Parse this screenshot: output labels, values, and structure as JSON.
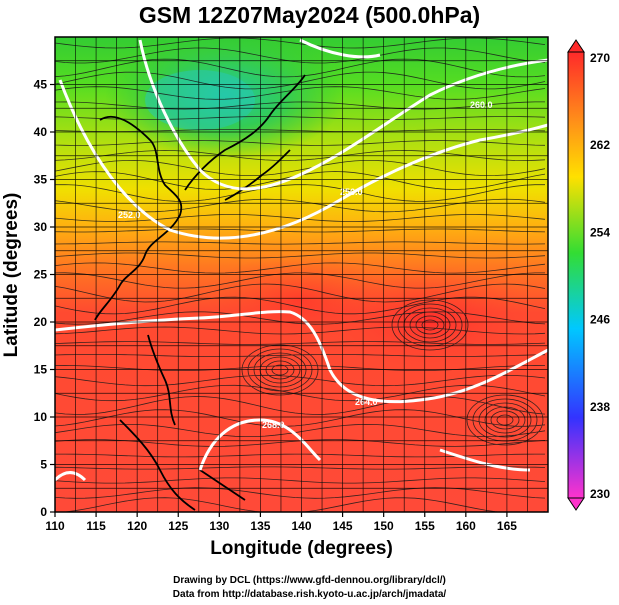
{
  "title": "GSM 12Z07May2024 (500.0hPa)",
  "xlabel": "Longitude (degrees)",
  "ylabel": "Latitude (degrees)",
  "credits": {
    "line1": "Drawing by DCL (https://www.gfd-dennou.org/library/dcl/)",
    "line2": "Data from http://database.rish.kyoto-u.ac.jp/arch/jmadata/"
  },
  "map": {
    "lon_range": [
      110,
      170
    ],
    "lat_range": [
      0,
      50
    ],
    "x_ticks": [
      "110",
      "115",
      "120",
      "125",
      "130",
      "135",
      "140",
      "145",
      "150",
      "155",
      "160",
      "165"
    ],
    "y_ticks": [
      "0",
      "5",
      "10",
      "15",
      "20",
      "25",
      "30",
      "35",
      "40",
      "45"
    ]
  },
  "contour_labels": [
    "252.0",
    "256.0",
    "260.0",
    "264.0",
    "268.0"
  ],
  "colorbar": {
    "labels": [
      "270",
      "262",
      "254",
      "246",
      "238",
      "230"
    ],
    "stops": [
      "#ff33cc",
      "#3333ff",
      "#00c8ff",
      "#33dd33",
      "#ffe000",
      "#ff8c1a",
      "#ff2a2a"
    ]
  },
  "chart_data": {
    "type": "heatmap",
    "title": "GSM 12Z07May2024 (500.0hPa)",
    "xlabel": "Longitude (degrees)",
    "ylabel": "Latitude (degrees)",
    "xlim": [
      110,
      170
    ],
    "ylim": [
      0,
      50
    ],
    "colorbar_range": [
      230,
      270
    ],
    "contour_levels": [
      252,
      256,
      260,
      264,
      268
    ]
  }
}
